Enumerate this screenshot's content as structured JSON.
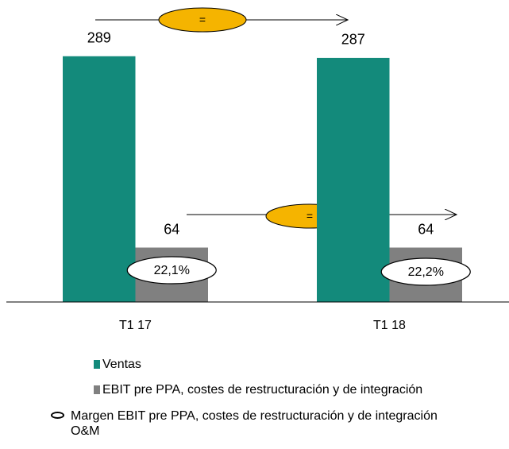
{
  "chart_data": {
    "type": "bar",
    "categories": [
      "T1 17",
      "T1 18"
    ],
    "series": [
      {
        "name": "Ventas",
        "color": "#138a7b",
        "values": [
          289,
          287
        ]
      },
      {
        "name": "EBIT pre PPA, costes de restructuración y de integración",
        "color": "#808080",
        "values": [
          64,
          64
        ]
      }
    ],
    "margin": {
      "name": "Margen EBIT pre PPA, costes de restructuración y de integración O&M",
      "values": [
        22.1,
        22.2
      ],
      "value_labels": [
        "22,1%",
        "22,2%"
      ]
    },
    "annotations": [
      "=",
      "="
    ],
    "ylim": [
      0,
      300
    ]
  }
}
